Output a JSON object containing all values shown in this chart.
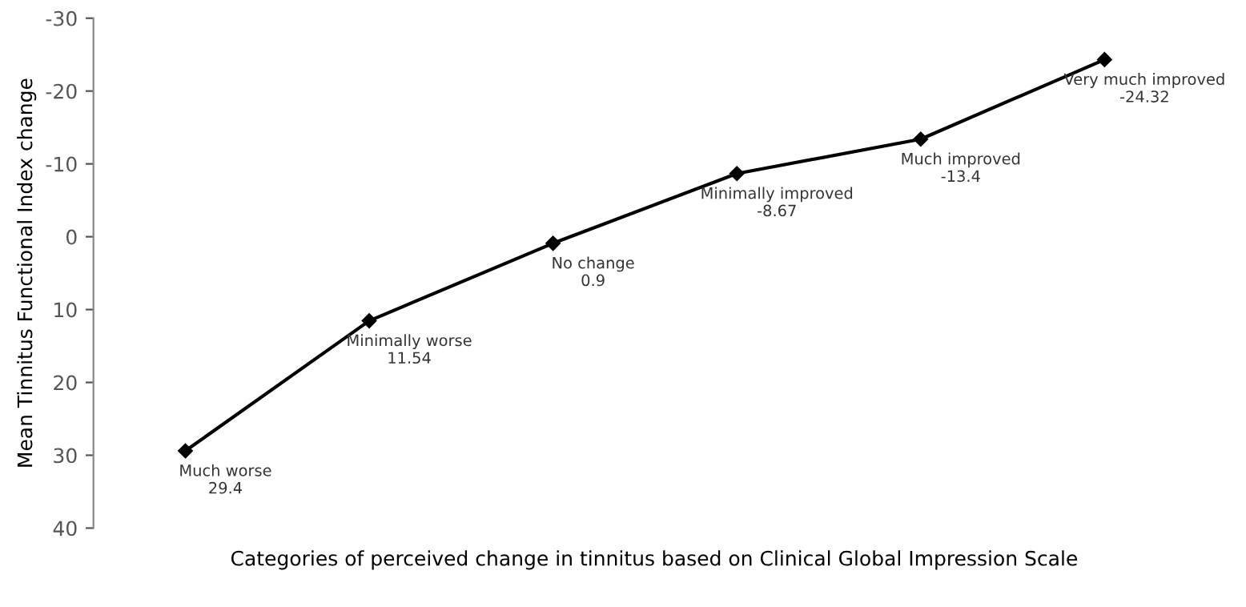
{
  "chart_data": {
    "type": "line",
    "xlabel": "Categories of perceived change in tinnitus based on Clinical Global Impression Scale",
    "ylabel": "Mean Tinnitus Functional Index change",
    "categories": [
      "Much worse",
      "Minimally worse",
      "No change",
      "Minimally improved",
      "Much improved",
      "Very much improved"
    ],
    "series": [
      {
        "color": "#000000",
        "values": [
          29.4,
          11.54,
          0.9,
          -8.67,
          -13.4,
          -24.32
        ]
      }
    ],
    "ylim": [
      40,
      -30
    ],
    "yticks": [
      40,
      30,
      20,
      10,
      0,
      -10,
      -20,
      -30
    ],
    "marker": "diamond",
    "line_style": "solid",
    "grid": false,
    "data_labels": true
  }
}
